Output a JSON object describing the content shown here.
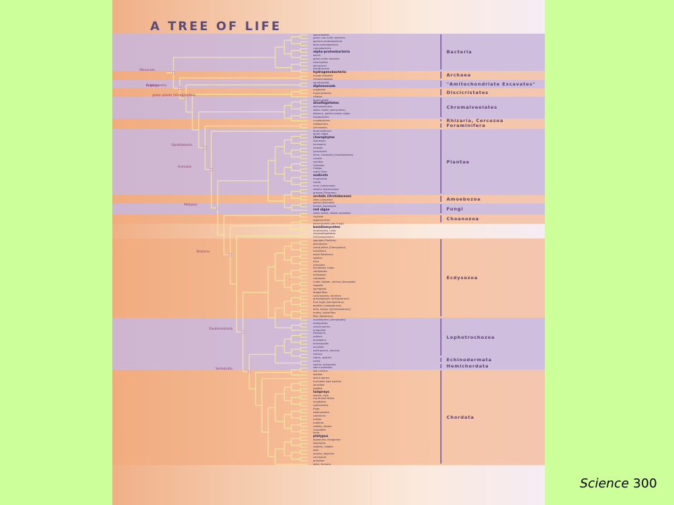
{
  "title": "A TREE OF LIFE",
  "citation": {
    "journal": "Science",
    "volume": "300"
  },
  "colors": {
    "background": "#ccff99",
    "purple_band": "#c9b6dc",
    "orange_band": "#f2a878",
    "branch": "#f5e6a0",
    "group_bar": "#8c6fb8"
  },
  "groups": [
    {
      "name": "Bacteria",
      "y0": 48,
      "y1": 100,
      "color": "purple"
    },
    {
      "name": "Archaea",
      "y0": 101,
      "y1": 113,
      "color": "orange"
    },
    {
      "name": "\"Amitochondriate Excavates\"",
      "y0": 114,
      "y1": 125,
      "color": "purple"
    },
    {
      "name": "Discicristates",
      "y0": 126,
      "y1": 137,
      "color": "orange"
    },
    {
      "name": "Chromalveolates",
      "y0": 138,
      "y1": 168,
      "color": "purple"
    },
    {
      "name": "Rhizaria, Cercozoa",
      "y0": 169,
      "y1": 174,
      "color": "orange"
    },
    {
      "name": "Foraminifera",
      "y0": 175,
      "y1": 183,
      "color": "orange"
    },
    {
      "name": "Plantae",
      "y0": 184,
      "y1": 277,
      "color": "purple"
    },
    {
      "name": "Amoebozoa",
      "y0": 278,
      "y1": 289,
      "color": "orange"
    },
    {
      "name": "Fungi",
      "y0": 290,
      "y1": 305,
      "color": "purple"
    },
    {
      "name": "Choanozoa",
      "y0": 306,
      "y1": 318,
      "color": "orange"
    },
    {
      "name": "Ecdysozoa",
      "y0": 340,
      "y1": 452,
      "color": "orange"
    },
    {
      "name": "Lophotrochozoa",
      "y0": 453,
      "y1": 508,
      "color": "purple"
    },
    {
      "name": "Echinodermata",
      "y0": 509,
      "y1": 517,
      "color": "purple"
    },
    {
      "name": "Hemichordata",
      "y0": 518,
      "y1": 526,
      "color": "purple"
    },
    {
      "name": "Chordata",
      "y0": 527,
      "y1": 662,
      "color": "orange"
    }
  ],
  "node_labels": [
    {
      "text": "Eukarya"
    },
    {
      "text": "green plants (Viridiplantae)"
    },
    {
      "text": "Angiosperms"
    },
    {
      "text": "Monocots"
    },
    {
      "text": "Opisthokonta"
    },
    {
      "text": "Animalia"
    },
    {
      "text": "Metazoa"
    },
    {
      "text": "Bilateria"
    },
    {
      "text": "Deuterostomia"
    },
    {
      "text": "Vertebrata"
    }
  ],
  "tips": [
    {
      "text": "spirochaetes",
      "group": 0
    },
    {
      "text": "green non-sulfur bacteria",
      "group": 0
    },
    {
      "text": "gamma proteobacteria",
      "group": 0
    },
    {
      "text": "beta proteobacteria",
      "group": 0
    },
    {
      "text": "cyanobacteria",
      "group": 0
    },
    {
      "text": "alpha-proteobacteria",
      "group": 0,
      "bold": true
    },
    {
      "text": "bacilli",
      "group": 0
    },
    {
      "text": "green sulfur bacteria",
      "group": 0
    },
    {
      "text": "chlamydiae",
      "group": 0
    },
    {
      "text": "deinococci",
      "group": 0
    },
    {
      "text": "Aquificaceae",
      "group": 0
    },
    {
      "text": "hydrogenobacteria",
      "group": 0,
      "bold": true
    },
    {
      "text": "euryarchaeotes",
      "group": 1
    },
    {
      "text": "crenarchaeotes",
      "group": 1
    },
    {
      "text": "parabasalids",
      "group": 2
    },
    {
      "text": "diplomonads",
      "group": 2,
      "bold": true
    },
    {
      "text": "euglenids",
      "group": 3
    },
    {
      "text": "trypanosomes",
      "group": 3
    },
    {
      "text": "ciliates",
      "group": 3
    },
    {
      "text": "brown algae",
      "group": 4
    },
    {
      "text": "dinoflagellates",
      "group": 4,
      "bold": true
    },
    {
      "text": "apicomplexans",
      "group": 4
    },
    {
      "text": "water molds (oomycetes)",
      "group": 4
    },
    {
      "text": "diatoms, golden-brown algae",
      "group": 4
    },
    {
      "text": "haptophytes",
      "group": 4
    },
    {
      "text": "cryptophytes",
      "group": 4
    },
    {
      "text": "radiolarians",
      "group": 5
    },
    {
      "text": "cercozoans",
      "group": 5
    },
    {
      "text": "foraminiferans",
      "group": 6
    },
    {
      "text": "green algae",
      "group": 7
    },
    {
      "text": "charophytes",
      "group": 7,
      "bold": true
    },
    {
      "text": "liverworts",
      "group": 7
    },
    {
      "text": "hornworts",
      "group": 7
    },
    {
      "text": "mosses",
      "group": 7
    },
    {
      "text": "lycophytes",
      "group": 7
    },
    {
      "text": "ferns, horsetails (monilophytes)",
      "group": 7
    },
    {
      "text": "cycads",
      "group": 7
    },
    {
      "text": "conifers",
      "group": 7
    },
    {
      "text": "Gnetales",
      "group": 7
    },
    {
      "text": "Ginkgo",
      "group": 7
    },
    {
      "text": "water lilies",
      "group": 7
    },
    {
      "text": "eudicots",
      "group": 7,
      "bold": true
    },
    {
      "text": "magnoliids",
      "group": 7
    },
    {
      "text": "rosids",
      "group": 7
    },
    {
      "text": "mint (Lamiaceae)",
      "group": 7
    },
    {
      "text": "daisies (Asteraceae)",
      "group": 7
    },
    {
      "text": "grasses (Poaceae)",
      "group": 7
    },
    {
      "text": "orchids (Orchidaceae)",
      "group": 7,
      "bold": true
    },
    {
      "text": "lilies (Liliaceae)",
      "group": 7
    },
    {
      "text": "palms (Arecales)",
      "group": 7
    },
    {
      "text": "onions, asparagus",
      "group": 7
    },
    {
      "text": "red algae",
      "group": 7,
      "bold": true
    },
    {
      "text": "slime molds, lobose amoebae",
      "group": 8
    },
    {
      "text": "chytrids",
      "group": 8
    },
    {
      "text": "zygomycetes",
      "group": 9
    },
    {
      "text": "ascomycetes (sac fungi)",
      "group": 9
    },
    {
      "text": "basidiomycetes",
      "group": 9,
      "bold": true
    },
    {
      "text": "mushrooms, rusts",
      "group": 9
    },
    {
      "text": "choanoflagellates",
      "group": 10
    },
    {
      "text": "ichthyosporeans",
      "group": 10
    },
    {
      "text": "sponges (Porifera)",
      "group": 11
    },
    {
      "text": "placozoans",
      "group": 11
    },
    {
      "text": "comb jellies (Ctenophora)",
      "group": 11
    },
    {
      "text": "cnidarians",
      "group": 11
    },
    {
      "text": "acoel flatworms",
      "group": 11
    },
    {
      "text": "spiders",
      "group": 11
    },
    {
      "text": "ticks",
      "group": 11
    },
    {
      "text": "scorpions",
      "group": 11
    },
    {
      "text": "horseshoe crabs",
      "group": 11
    },
    {
      "text": "centipedes",
      "group": 11
    },
    {
      "text": "millipedes",
      "group": 11
    },
    {
      "text": "copepods",
      "group": 11
    },
    {
      "text": "crabs, lobster, shrimp (decapods)",
      "group": 11
    },
    {
      "text": "isopods",
      "group": 11
    },
    {
      "text": "springtails",
      "group": 11
    },
    {
      "text": "dragonflies",
      "group": 11
    },
    {
      "text": "cockroaches, termites",
      "group": 11
    },
    {
      "text": "grasshoppers (orthopterans)",
      "group": 11
    },
    {
      "text": "true bugs (hemipterans)",
      "group": 11
    },
    {
      "text": "beetles (coleopterans)",
      "group": 11
    },
    {
      "text": "ants, wasps (hymenopterans)",
      "group": 11
    },
    {
      "text": "moths, butterflies",
      "group": 11
    },
    {
      "text": "flies (dipterans)",
      "group": 11
    },
    {
      "text": "roundworms (nematodes)",
      "group": 11
    },
    {
      "text": "tardigrades",
      "group": 11
    },
    {
      "text": "velvet worms",
      "group": 11
    },
    {
      "text": "priapulids",
      "group": 11
    },
    {
      "text": "flatworms",
      "group": 12
    },
    {
      "text": "rotifers",
      "group": 12
    },
    {
      "text": "bryozoans",
      "group": 12
    },
    {
      "text": "brachiopods",
      "group": 12
    },
    {
      "text": "annelids",
      "group": 12
    },
    {
      "text": "earthworms, leeches",
      "group": 12
    },
    {
      "text": "chitons",
      "group": 12
    },
    {
      "text": "clams, oysters",
      "group": 12
    },
    {
      "text": "snails",
      "group": 12
    },
    {
      "text": "squids, octopuses",
      "group": 12
    },
    {
      "text": "sea cucumbers",
      "group": 13
    },
    {
      "text": "sea urchins",
      "group": 13
    },
    {
      "text": "starfish",
      "group": 13
    },
    {
      "text": "acorn worms",
      "group": 14
    },
    {
      "text": "tunicates (sea squirts)",
      "group": 15
    },
    {
      "text": "lancelets",
      "group": 15
    },
    {
      "text": "hagfish",
      "group": 15
    },
    {
      "text": "lampreys",
      "group": 15,
      "bold": true
    },
    {
      "text": "sharks, rays",
      "group": 15
    },
    {
      "text": "ray-finned fishes",
      "group": 15
    },
    {
      "text": "lungfishes",
      "group": 15
    },
    {
      "text": "coelacanths",
      "group": 15
    },
    {
      "text": "frogs",
      "group": 15
    },
    {
      "text": "salamanders",
      "group": 15
    },
    {
      "text": "caecilians",
      "group": 15
    },
    {
      "text": "turtles",
      "group": 15
    },
    {
      "text": "tuataras",
      "group": 15
    },
    {
      "text": "snakes, lizards",
      "group": 15
    },
    {
      "text": "crocodiles",
      "group": 15
    },
    {
      "text": "birds",
      "group": 15
    },
    {
      "text": "platypus",
      "group": 15,
      "bold": true
    },
    {
      "text": "opossums, kangaroos",
      "group": 15
    },
    {
      "text": "elephants",
      "group": 15
    },
    {
      "text": "rodents, rabbits",
      "group": 15
    },
    {
      "text": "bats",
      "group": 15
    },
    {
      "text": "whales, dolphins",
      "group": 15
    },
    {
      "text": "carnivores",
      "group": 15
    },
    {
      "text": "primates",
      "group": 15
    },
    {
      "text": "apes, humans",
      "group": 15
    }
  ]
}
